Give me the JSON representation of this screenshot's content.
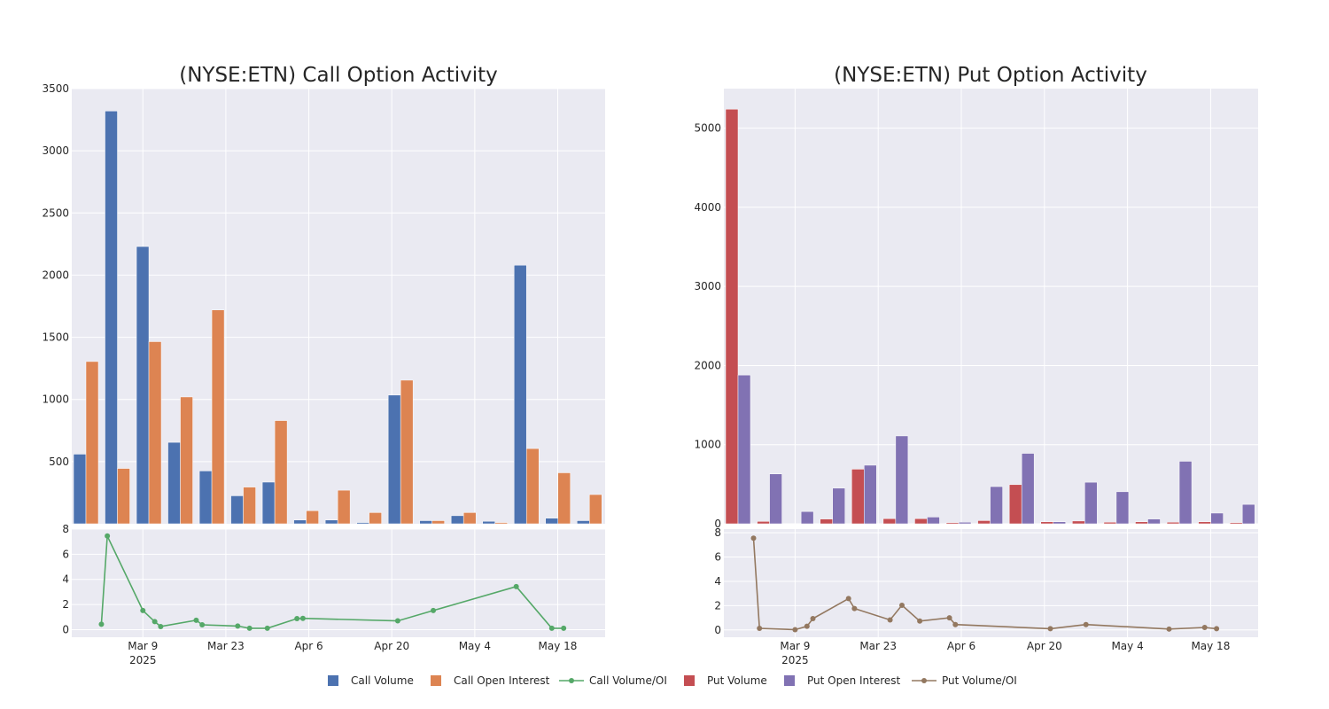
{
  "colors": {
    "plot_bg": "#EAEAF2",
    "grid": "#FFFFFF",
    "call_volume": "#4C72B0",
    "call_open_interest": "#DD8452",
    "call_ratio": "#55A868",
    "put_volume": "#C44E52",
    "put_open_interest": "#8172B3",
    "put_ratio": "#937860"
  },
  "legend": [
    {
      "label": "Call Volume",
      "marker": "square",
      "color_key": "call_volume"
    },
    {
      "label": "Call Open Interest",
      "marker": "square",
      "color_key": "call_open_interest"
    },
    {
      "label": "Call Volume/OI",
      "marker": "line",
      "color_key": "call_ratio"
    },
    {
      "label": "Put Volume",
      "marker": "square",
      "color_key": "put_volume"
    },
    {
      "label": "Put Open Interest",
      "marker": "square",
      "color_key": "put_open_interest"
    },
    {
      "label": "Put Volume/OI",
      "marker": "line",
      "color_key": "put_ratio"
    }
  ],
  "chart_data": [
    {
      "type": "bar",
      "title": "(NYSE:ETN) Call Option Activity",
      "grid": true,
      "ylim": [
        0,
        3500
      ],
      "yticks": [
        500,
        1000,
        1500,
        2000,
        2500,
        3000,
        3500
      ],
      "series": [
        {
          "name": "Call Volume",
          "color_key": "call_volume",
          "values": [
            560,
            3320,
            2230,
            655,
            425,
            225,
            335,
            30,
            30,
            10,
            1035,
            25,
            65,
            20,
            2080,
            45,
            25
          ]
        },
        {
          "name": "Call Open Interest",
          "color_key": "call_open_interest",
          "values": [
            1305,
            445,
            1465,
            1020,
            1720,
            295,
            830,
            105,
            270,
            90,
            1155,
            25,
            90,
            10,
            605,
            410,
            235
          ]
        }
      ]
    },
    {
      "type": "bar",
      "title": "(NYSE:ETN) Put Option Activity",
      "grid": true,
      "ylim": [
        0,
        5500
      ],
      "yticks": [
        0,
        1000,
        2000,
        3000,
        4000,
        5000
      ],
      "series": [
        {
          "name": "Put Volume",
          "color_key": "put_volume",
          "values": [
            5240,
            30,
            0,
            60,
            690,
            65,
            65,
            15,
            40,
            495,
            25,
            35,
            20,
            25,
            20,
            25,
            15
          ]
        },
        {
          "name": "Put Open Interest",
          "color_key": "put_open_interest",
          "values": [
            1880,
            630,
            155,
            450,
            740,
            1110,
            85,
            20,
            470,
            890,
            25,
            525,
            405,
            60,
            790,
            135,
            245
          ]
        }
      ]
    },
    {
      "type": "line",
      "name": "Call Volume/OI",
      "color_key": "call_ratio",
      "x_range": [
        "2025-02-25",
        "2025-05-26"
      ],
      "x_ticks": [
        {
          "date": "2025-03-09",
          "label": "Mar 9",
          "sublabel": "2025"
        },
        {
          "date": "2025-03-23",
          "label": "Mar 23"
        },
        {
          "date": "2025-04-06",
          "label": "Apr 6"
        },
        {
          "date": "2025-04-20",
          "label": "Apr 20"
        },
        {
          "date": "2025-05-04",
          "label": "May 4"
        },
        {
          "date": "2025-05-18",
          "label": "May 18"
        }
      ],
      "ylim": [
        -0.6,
        8
      ],
      "yticks": [
        0,
        2,
        4,
        6,
        8
      ],
      "points": [
        {
          "x": "2025-03-02",
          "y": 0.43
        },
        {
          "x": "2025-03-03",
          "y": 7.45
        },
        {
          "x": "2025-03-09",
          "y": 1.52
        },
        {
          "x": "2025-03-11",
          "y": 0.64
        },
        {
          "x": "2025-03-12",
          "y": 0.25
        },
        {
          "x": "2025-03-18",
          "y": 0.75
        },
        {
          "x": "2025-03-19",
          "y": 0.39
        },
        {
          "x": "2025-03-25",
          "y": 0.29
        },
        {
          "x": "2025-03-27",
          "y": 0.11
        },
        {
          "x": "2025-03-30",
          "y": 0.11
        },
        {
          "x": "2025-04-04",
          "y": 0.88
        },
        {
          "x": "2025-04-05",
          "y": 0.9
        },
        {
          "x": "2025-04-21",
          "y": 0.7
        },
        {
          "x": "2025-04-27",
          "y": 1.52
        },
        {
          "x": "2025-05-11",
          "y": 3.43
        },
        {
          "x": "2025-05-17",
          "y": 0.11
        },
        {
          "x": "2025-05-19",
          "y": 0.11
        }
      ]
    },
    {
      "type": "line",
      "name": "Put Volume/OI",
      "color_key": "put_ratio",
      "x_range": [
        "2025-02-25",
        "2025-05-26"
      ],
      "x_ticks": [
        {
          "date": "2025-03-09",
          "label": "Mar 9",
          "sublabel": "2025"
        },
        {
          "date": "2025-03-23",
          "label": "Mar 23"
        },
        {
          "date": "2025-04-06",
          "label": "Apr 6"
        },
        {
          "date": "2025-04-20",
          "label": "Apr 20"
        },
        {
          "date": "2025-05-04",
          "label": "May 4"
        },
        {
          "date": "2025-05-18",
          "label": "May 18"
        }
      ],
      "ylim": [
        -0.6,
        8.3
      ],
      "yticks": [
        0,
        2,
        4,
        6,
        8
      ],
      "points": [
        {
          "x": "2025-03-02",
          "y": 7.55
        },
        {
          "x": "2025-03-03",
          "y": 0.13
        },
        {
          "x": "2025-03-09",
          "y": 0.02
        },
        {
          "x": "2025-03-11",
          "y": 0.3
        },
        {
          "x": "2025-03-12",
          "y": 0.93
        },
        {
          "x": "2025-03-18",
          "y": 2.58
        },
        {
          "x": "2025-03-19",
          "y": 1.76
        },
        {
          "x": "2025-03-25",
          "y": 0.82
        },
        {
          "x": "2025-03-27",
          "y": 2.03
        },
        {
          "x": "2025-03-30",
          "y": 0.73
        },
        {
          "x": "2025-04-04",
          "y": 1.0
        },
        {
          "x": "2025-04-05",
          "y": 0.44
        },
        {
          "x": "2025-04-21",
          "y": 0.1
        },
        {
          "x": "2025-04-27",
          "y": 0.44
        },
        {
          "x": "2025-05-11",
          "y": 0.07
        },
        {
          "x": "2025-05-17",
          "y": 0.2
        },
        {
          "x": "2025-05-19",
          "y": 0.1
        }
      ]
    }
  ]
}
